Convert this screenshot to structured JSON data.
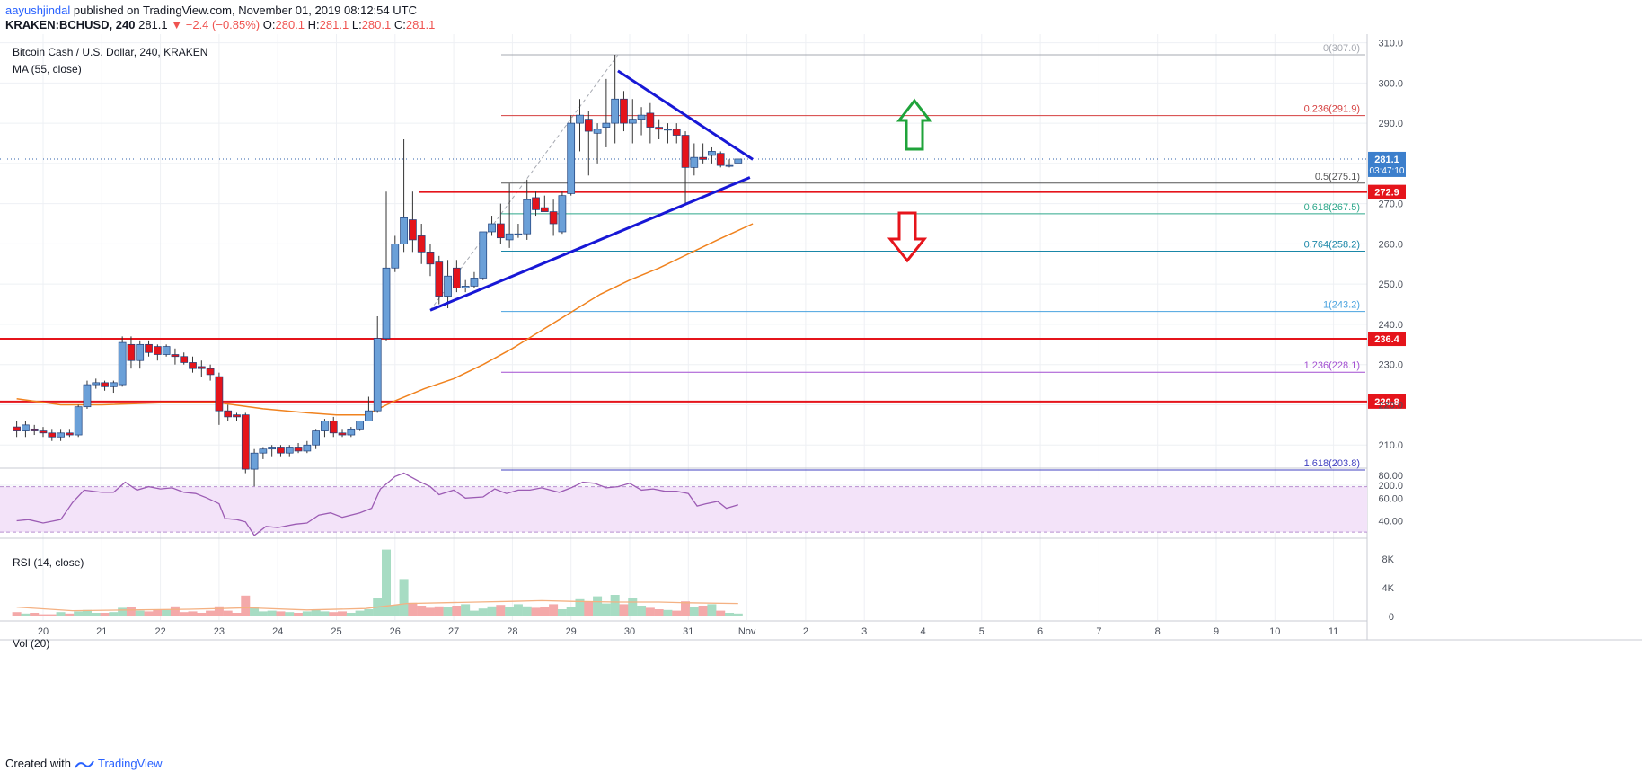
{
  "header": {
    "author": "aayushjindal",
    "published_text": "published on TradingView.com, November 01, 2019 08:12:54 UTC",
    "symbol": "KRAKEN:BCHUSD, 240",
    "last": "281.1",
    "change": "▼ −2.4 (−0.85%)",
    "o_label": "O:",
    "o_val": "280.1",
    "h_label": "H:",
    "h_val": "281.1",
    "l_label": "L:",
    "l_val": "280.1",
    "c_label": "C:",
    "c_val": "281.1"
  },
  "legend": {
    "title": "Bitcoin Cash / U.S. Dollar, 240, KRAKEN",
    "ma": "MA (55, close)",
    "rsi": "RSI (14, close)",
    "vol": "Vol (20)"
  },
  "price_badge": {
    "value": "281.1",
    "countdown": "03:47:10"
  },
  "footer": {
    "created": "Created with",
    "brand": "TradingView"
  },
  "colors": {
    "up": "#6ba0d8",
    "down": "#e5141b",
    "ma": "#f0821e",
    "trend": "#1717d6",
    "support": "#e5141b",
    "rsi": "#9c5cb4",
    "rsi_band": "#f3e3f9",
    "vol_up": "#a7dcc3",
    "vol_down": "#f4a9a9",
    "vol_ma": "#f4b183",
    "arrow_up": "#1fa33a",
    "arrow_down": "#e5141b"
  },
  "chart_data": {
    "type": "candlestick",
    "title": "Bitcoin Cash / U.S. Dollar, 240, KRAKEN",
    "ylim": [
      193.5,
      313
    ],
    "y_ticks": [
      200,
      210,
      220,
      230,
      240,
      250,
      260,
      270,
      280,
      290,
      300,
      310
    ],
    "x_ticks": [
      "20",
      "21",
      "22",
      "23",
      "24",
      "25",
      "26",
      "27",
      "28",
      "29",
      "30",
      "31",
      "Nov",
      "2",
      "3",
      "4",
      "5",
      "6",
      "7",
      "8",
      "9",
      "10",
      "11"
    ],
    "x_range": [
      19.55,
      12.7
    ],
    "candles": [
      {
        "t": 19.55,
        "o": 214.5,
        "h": 216,
        "l": 212,
        "c": 213.5
      },
      {
        "t": 19.7,
        "o": 213.5,
        "h": 216,
        "l": 212,
        "c": 215
      },
      {
        "t": 19.85,
        "o": 214,
        "h": 215,
        "l": 212.5,
        "c": 213.5
      },
      {
        "t": 20.0,
        "o": 213.5,
        "h": 214.5,
        "l": 212,
        "c": 213
      },
      {
        "t": 20.15,
        "o": 213,
        "h": 214,
        "l": 211,
        "c": 212
      },
      {
        "t": 20.3,
        "o": 212,
        "h": 214,
        "l": 211,
        "c": 213
      },
      {
        "t": 20.45,
        "o": 213,
        "h": 214,
        "l": 212,
        "c": 212.5
      },
      {
        "t": 20.6,
        "o": 212.5,
        "h": 220,
        "l": 212,
        "c": 219.5
      },
      {
        "t": 20.75,
        "o": 219.5,
        "h": 226,
        "l": 219,
        "c": 225
      },
      {
        "t": 20.9,
        "o": 225,
        "h": 226.5,
        "l": 224,
        "c": 225.5
      },
      {
        "t": 21.05,
        "o": 225.5,
        "h": 226,
        "l": 223.5,
        "c": 224.5
      },
      {
        "t": 21.2,
        "o": 224.5,
        "h": 226,
        "l": 223,
        "c": 225.5
      },
      {
        "t": 21.35,
        "o": 225,
        "h": 237,
        "l": 224.5,
        "c": 235.5
      },
      {
        "t": 21.5,
        "o": 235,
        "h": 237,
        "l": 229,
        "c": 231
      },
      {
        "t": 21.65,
        "o": 231,
        "h": 236,
        "l": 229,
        "c": 235
      },
      {
        "t": 21.8,
        "o": 235,
        "h": 236,
        "l": 232,
        "c": 233
      },
      {
        "t": 21.95,
        "o": 234.5,
        "h": 235,
        "l": 231,
        "c": 232.5
      },
      {
        "t": 22.1,
        "o": 232.5,
        "h": 235,
        "l": 232,
        "c": 234.5
      },
      {
        "t": 22.25,
        "o": 232.5,
        "h": 234,
        "l": 230,
        "c": 232
      },
      {
        "t": 22.4,
        "o": 232,
        "h": 233,
        "l": 230,
        "c": 230.5
      },
      {
        "t": 22.55,
        "o": 230.5,
        "h": 232,
        "l": 228,
        "c": 229
      },
      {
        "t": 22.7,
        "o": 229.5,
        "h": 231,
        "l": 227,
        "c": 229
      },
      {
        "t": 22.85,
        "o": 229,
        "h": 230,
        "l": 226,
        "c": 227.5
      },
      {
        "t": 23.0,
        "o": 227,
        "h": 228,
        "l": 215,
        "c": 218.5
      },
      {
        "t": 23.15,
        "o": 218.5,
        "h": 220,
        "l": 216,
        "c": 217
      },
      {
        "t": 23.3,
        "o": 217.5,
        "h": 218,
        "l": 216,
        "c": 217
      },
      {
        "t": 23.45,
        "o": 217.5,
        "h": 218,
        "l": 203,
        "c": 204
      },
      {
        "t": 23.6,
        "o": 204,
        "h": 209,
        "l": 197,
        "c": 208
      },
      {
        "t": 23.75,
        "o": 208,
        "h": 209.5,
        "l": 206.5,
        "c": 209
      },
      {
        "t": 23.9,
        "o": 209,
        "h": 210,
        "l": 207,
        "c": 209.5
      },
      {
        "t": 24.05,
        "o": 209.5,
        "h": 210,
        "l": 207,
        "c": 208
      },
      {
        "t": 24.2,
        "o": 208,
        "h": 210,
        "l": 207,
        "c": 209.5
      },
      {
        "t": 24.35,
        "o": 209.5,
        "h": 210.5,
        "l": 208,
        "c": 208.5
      },
      {
        "t": 24.5,
        "o": 208.5,
        "h": 211,
        "l": 208,
        "c": 210
      },
      {
        "t": 24.65,
        "o": 210,
        "h": 214,
        "l": 209,
        "c": 213.5
      },
      {
        "t": 24.8,
        "o": 213.5,
        "h": 216.5,
        "l": 212,
        "c": 216
      },
      {
        "t": 24.95,
        "o": 216,
        "h": 217,
        "l": 212,
        "c": 213
      },
      {
        "t": 25.1,
        "o": 213,
        "h": 214,
        "l": 212,
        "c": 212.5
      },
      {
        "t": 25.25,
        "o": 212.5,
        "h": 214.5,
        "l": 212,
        "c": 214
      },
      {
        "t": 25.4,
        "o": 214,
        "h": 216,
        "l": 213.5,
        "c": 216
      },
      {
        "t": 25.55,
        "o": 216,
        "h": 222,
        "l": 216,
        "c": 218.5
      },
      {
        "t": 25.7,
        "o": 218.5,
        "h": 242,
        "l": 218,
        "c": 236.5
      },
      {
        "t": 25.85,
        "o": 236.5,
        "h": 273,
        "l": 236,
        "c": 254
      },
      {
        "t": 26.0,
        "o": 254,
        "h": 262,
        "l": 253,
        "c": 260
      },
      {
        "t": 26.15,
        "o": 260,
        "h": 286,
        "l": 258,
        "c": 266.5
      },
      {
        "t": 26.3,
        "o": 266,
        "h": 273,
        "l": 258,
        "c": 261
      },
      {
        "t": 26.45,
        "o": 262,
        "h": 265,
        "l": 255,
        "c": 258
      },
      {
        "t": 26.6,
        "o": 258,
        "h": 260,
        "l": 252,
        "c": 255
      },
      {
        "t": 26.75,
        "o": 255.5,
        "h": 257,
        "l": 245,
        "c": 247
      },
      {
        "t": 26.9,
        "o": 247,
        "h": 256,
        "l": 244,
        "c": 252
      },
      {
        "t": 27.05,
        "o": 254,
        "h": 256,
        "l": 248,
        "c": 249
      },
      {
        "t": 27.2,
        "o": 249,
        "h": 251,
        "l": 248,
        "c": 249.5
      },
      {
        "t": 27.35,
        "o": 249.5,
        "h": 253,
        "l": 249,
        "c": 251.5
      },
      {
        "t": 27.5,
        "o": 251.5,
        "h": 262,
        "l": 251,
        "c": 263
      },
      {
        "t": 27.65,
        "o": 263,
        "h": 267,
        "l": 262,
        "c": 265
      },
      {
        "t": 27.8,
        "o": 265,
        "h": 270,
        "l": 260,
        "c": 261.5
      },
      {
        "t": 27.95,
        "o": 261,
        "h": 275,
        "l": 259,
        "c": 262.5
      },
      {
        "t": 28.1,
        "o": 262.5,
        "h": 265,
        "l": 261.5,
        "c": 262.5
      },
      {
        "t": 28.25,
        "o": 262.5,
        "h": 276,
        "l": 261,
        "c": 271
      },
      {
        "t": 28.4,
        "o": 271.5,
        "h": 273,
        "l": 267,
        "c": 268.5
      },
      {
        "t": 28.55,
        "o": 269,
        "h": 272,
        "l": 268,
        "c": 268
      },
      {
        "t": 28.7,
        "o": 268,
        "h": 271,
        "l": 262,
        "c": 265
      },
      {
        "t": 28.85,
        "o": 263,
        "h": 273,
        "l": 262.5,
        "c": 272
      },
      {
        "t": 29.0,
        "o": 272.5,
        "h": 292,
        "l": 272,
        "c": 290
      },
      {
        "t": 29.15,
        "o": 290,
        "h": 296,
        "l": 283,
        "c": 292
      },
      {
        "t": 29.3,
        "o": 291,
        "h": 293,
        "l": 277,
        "c": 288
      },
      {
        "t": 29.45,
        "o": 287.5,
        "h": 290,
        "l": 280,
        "c": 288.5
      },
      {
        "t": 29.6,
        "o": 289,
        "h": 301,
        "l": 284,
        "c": 290
      },
      {
        "t": 29.75,
        "o": 290,
        "h": 307,
        "l": 285,
        "c": 296
      },
      {
        "t": 29.9,
        "o": 296,
        "h": 298,
        "l": 288,
        "c": 290
      },
      {
        "t": 30.05,
        "o": 290,
        "h": 296,
        "l": 285,
        "c": 291
      },
      {
        "t": 30.2,
        "o": 291,
        "h": 294,
        "l": 287,
        "c": 292
      },
      {
        "t": 30.35,
        "o": 292.5,
        "h": 295,
        "l": 285,
        "c": 289
      },
      {
        "t": 30.5,
        "o": 289,
        "h": 291,
        "l": 286,
        "c": 288.5
      },
      {
        "t": 30.65,
        "o": 288.5,
        "h": 290,
        "l": 285,
        "c": 288.5
      },
      {
        "t": 30.8,
        "o": 288.5,
        "h": 290,
        "l": 285,
        "c": 287
      },
      {
        "t": 30.95,
        "o": 287,
        "h": 288,
        "l": 270,
        "c": 279
      },
      {
        "t": 31.1,
        "o": 279,
        "h": 285,
        "l": 277,
        "c": 281.5
      },
      {
        "t": 31.25,
        "o": 281.5,
        "h": 285,
        "l": 280,
        "c": 281
      },
      {
        "t": 31.4,
        "o": 282,
        "h": 284,
        "l": 280,
        "c": 283
      },
      {
        "t": 31.55,
        "o": 282.5,
        "h": 283,
        "l": 279,
        "c": 279.5
      },
      {
        "t": 31.7,
        "o": 279.5,
        "h": 281,
        "l": 279,
        "c": 279.5
      },
      {
        "t": 31.85,
        "o": 280.1,
        "h": 281.1,
        "l": 280.1,
        "c": 281.1
      }
    ],
    "ma_55": [
      [
        19.55,
        221.5
      ],
      [
        20.3,
        220
      ],
      [
        21.0,
        220
      ],
      [
        22.0,
        220.5
      ],
      [
        23.0,
        220.5
      ],
      [
        23.75,
        219
      ],
      [
        24.5,
        218
      ],
      [
        25.0,
        217.5
      ],
      [
        25.5,
        217.5
      ],
      [
        26.0,
        221
      ],
      [
        26.5,
        224
      ],
      [
        27.0,
        226.5
      ],
      [
        27.5,
        230
      ],
      [
        28.0,
        234
      ],
      [
        28.5,
        238.5
      ],
      [
        29.0,
        243
      ],
      [
        29.5,
        247.5
      ],
      [
        30.0,
        251
      ],
      [
        30.5,
        254
      ],
      [
        31.0,
        257.5
      ],
      [
        31.5,
        261
      ],
      [
        32.1,
        265
      ]
    ],
    "fib_levels": [
      {
        "ratio": "0",
        "price": 307.0,
        "label": "0(307.0)",
        "color": "#a5a8b0"
      },
      {
        "ratio": "0.236",
        "price": 291.9,
        "label": "0.236(291.9)",
        "color": "#d53f3f"
      },
      {
        "ratio": "0.5",
        "price": 275.1,
        "label": "0.5(275.1)",
        "color": "#555555"
      },
      {
        "ratio": "0.618",
        "price": 267.5,
        "label": "0.618(267.5)",
        "color": "#2ea88b"
      },
      {
        "ratio": "0.764",
        "price": 258.2,
        "label": "0.764(258.2)",
        "color": "#1a87a8"
      },
      {
        "ratio": "1",
        "price": 243.2,
        "label": "1(243.2)",
        "color": "#4aa3df"
      },
      {
        "ratio": "1.236",
        "price": 228.1,
        "label": "1.236(228.1)",
        "color": "#a24fd1"
      },
      {
        "ratio": "1.618",
        "price": 203.8,
        "label": "1.618(203.8)",
        "color": "#4040c0"
      }
    ],
    "horizontal_levels": [
      {
        "price": 272.9,
        "label": "272.9"
      },
      {
        "price": 236.4,
        "label": "236.4"
      },
      {
        "price": 220.8,
        "label": "220.8"
      }
    ],
    "trendlines": [
      {
        "from": [
          26.6,
          243.5
        ],
        "to": [
          32.05,
          276.5
        ]
      },
      {
        "from": [
          29.8,
          303
        ],
        "to": [
          32.1,
          281
        ]
      }
    ],
    "rsi": {
      "ylim": [
        25,
        83
      ],
      "ticks": [
        40,
        60,
        80
      ],
      "band": [
        30,
        70
      ],
      "points": [
        [
          19.55,
          40
        ],
        [
          19.75,
          41
        ],
        [
          20.0,
          38
        ],
        [
          20.3,
          41
        ],
        [
          20.5,
          56
        ],
        [
          20.7,
          67
        ],
        [
          21.0,
          65
        ],
        [
          21.2,
          65
        ],
        [
          21.4,
          74
        ],
        [
          21.6,
          67
        ],
        [
          21.8,
          70
        ],
        [
          22.0,
          68
        ],
        [
          22.2,
          69
        ],
        [
          22.4,
          65
        ],
        [
          22.6,
          64
        ],
        [
          22.8,
          60
        ],
        [
          23.0,
          55
        ],
        [
          23.1,
          42
        ],
        [
          23.3,
          41
        ],
        [
          23.45,
          39
        ],
        [
          23.6,
          27
        ],
        [
          23.8,
          35
        ],
        [
          24.0,
          34
        ],
        [
          24.3,
          37
        ],
        [
          24.5,
          38
        ],
        [
          24.7,
          45
        ],
        [
          24.9,
          47
        ],
        [
          25.1,
          43
        ],
        [
          25.4,
          47
        ],
        [
          25.6,
          51
        ],
        [
          25.75,
          68
        ],
        [
          26.0,
          79
        ],
        [
          26.15,
          82
        ],
        [
          26.4,
          75
        ],
        [
          26.6,
          70
        ],
        [
          26.75,
          63
        ],
        [
          27.0,
          67
        ],
        [
          27.2,
          60
        ],
        [
          27.5,
          61
        ],
        [
          27.7,
          68
        ],
        [
          27.9,
          64
        ],
        [
          28.1,
          67
        ],
        [
          28.3,
          67
        ],
        [
          28.5,
          69
        ],
        [
          28.8,
          65
        ],
        [
          29.0,
          69
        ],
        [
          29.2,
          74
        ],
        [
          29.4,
          73
        ],
        [
          29.6,
          69
        ],
        [
          29.8,
          70
        ],
        [
          30.0,
          73
        ],
        [
          30.2,
          67
        ],
        [
          30.4,
          68
        ],
        [
          30.6,
          66
        ],
        [
          30.8,
          66
        ],
        [
          31.0,
          64
        ],
        [
          31.15,
          53
        ],
        [
          31.3,
          55
        ],
        [
          31.5,
          57
        ],
        [
          31.65,
          51
        ],
        [
          31.85,
          54
        ]
      ]
    },
    "volume": {
      "ylim": [
        0,
        9500
      ],
      "ticks": [
        "0",
        "4K",
        "8K"
      ],
      "tick_values": [
        0,
        4000,
        8000
      ],
      "bars": [
        600,
        400,
        500,
        300,
        300,
        600,
        400,
        700,
        900,
        500,
        500,
        600,
        1200,
        1300,
        800,
        700,
        900,
        900,
        1400,
        600,
        700,
        500,
        800,
        1400,
        800,
        500,
        2900,
        1300,
        700,
        800,
        700,
        600,
        500,
        700,
        900,
        700,
        600,
        700,
        500,
        800,
        1000,
        2600,
        9300,
        1600,
        5200,
        1900,
        1500,
        1200,
        1400,
        1300,
        1500,
        1700,
        800,
        1100,
        1400,
        1600,
        1300,
        1700,
        1400,
        1200,
        1300,
        1700,
        1000,
        1300,
        2400,
        2100,
        2800,
        1800,
        3000,
        1700,
        2500,
        1500,
        1200,
        1000,
        900,
        800,
        2100,
        1300,
        1500,
        1700,
        800,
        500,
        400
      ],
      "ma_points": [
        [
          19.55,
          1300
        ],
        [
          20.5,
          800
        ],
        [
          21.5,
          900
        ],
        [
          22.5,
          1000
        ],
        [
          23.5,
          1200
        ],
        [
          24.5,
          900
        ],
        [
          25.5,
          1100
        ],
        [
          25.8,
          1400
        ],
        [
          26.2,
          1800
        ],
        [
          26.8,
          1900
        ],
        [
          27.4,
          2000
        ],
        [
          28.0,
          2100
        ],
        [
          28.5,
          2200
        ],
        [
          29.0,
          2100
        ],
        [
          29.8,
          2000
        ],
        [
          30.5,
          2000
        ],
        [
          31.0,
          1900
        ],
        [
          31.85,
          1800
        ]
      ]
    }
  }
}
